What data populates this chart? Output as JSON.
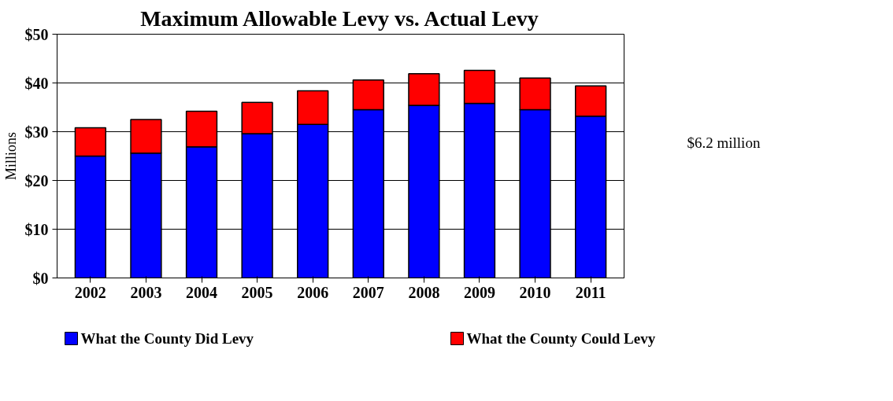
{
  "chart_data": {
    "type": "bar",
    "title": "Maximum Allowable Levy vs. Actual Levy",
    "ylabel": "Millions",
    "stacked": true,
    "categories": [
      "2002",
      "2003",
      "2004",
      "2005",
      "2006",
      "2007",
      "2008",
      "2009",
      "2010",
      "2011"
    ],
    "series": [
      {
        "name": "What the County Did Levy",
        "color": "#0000ff",
        "values": [
          25.0,
          25.6,
          26.9,
          29.6,
          31.5,
          34.5,
          35.4,
          35.8,
          34.5,
          33.2
        ]
      },
      {
        "name": "What the County Could Levy",
        "color": "#ff0000",
        "values": [
          5.8,
          6.9,
          7.3,
          6.4,
          6.9,
          6.1,
          6.5,
          6.8,
          6.5,
          6.2
        ]
      }
    ],
    "ylim": [
      0,
      50
    ],
    "yticks": [
      {
        "value": 0,
        "label": "$0"
      },
      {
        "value": 10,
        "label": "$10"
      },
      {
        "value": 20,
        "label": "$20"
      },
      {
        "value": 30,
        "label": "$30"
      },
      {
        "value": 40,
        "label": "$40"
      },
      {
        "value": 50,
        "label": "$50"
      }
    ],
    "grid": "y",
    "legend": "bottom",
    "annotations": [
      "$6.2 million"
    ]
  }
}
